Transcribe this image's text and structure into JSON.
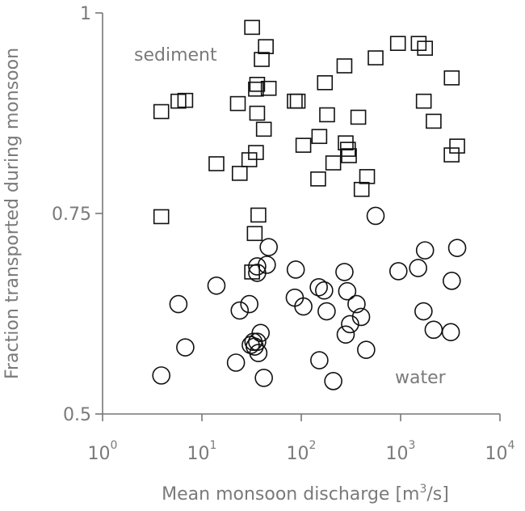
{
  "chart_data": {
    "type": "scatter",
    "title": "",
    "xlabel": "Mean monsoon discharge [m",
    "xlabel_sup": "3",
    "xlabel_tail": "/s]",
    "ylabel": "Fraction transported during monsoon",
    "xscale": "log",
    "xlim": [
      1,
      10000
    ],
    "ylim": [
      0.5,
      1.0
    ],
    "x_ticks": [
      {
        "base": "10",
        "exp": "0",
        "value": 1
      },
      {
        "base": "10",
        "exp": "1",
        "value": 10
      },
      {
        "base": "10",
        "exp": "2",
        "value": 100
      },
      {
        "base": "10",
        "exp": "3",
        "value": 1000
      },
      {
        "base": "10",
        "exp": "4",
        "value": 10000
      }
    ],
    "y_ticks": [
      {
        "label": "0.5",
        "value": 0.5
      },
      {
        "label": "0.75",
        "value": 0.75
      },
      {
        "label": "1",
        "value": 1.0
      }
    ],
    "annotations": {
      "sediment": "sediment",
      "water": "water"
    },
    "series": [
      {
        "name": "sediment",
        "marker": "square",
        "points": [
          [
            3.9,
            0.877
          ],
          [
            5.8,
            0.89
          ],
          [
            6.8,
            0.891
          ],
          [
            3.9,
            0.746
          ],
          [
            14,
            0.812
          ],
          [
            23,
            0.887
          ],
          [
            24,
            0.8
          ],
          [
            30,
            0.817
          ],
          [
            32,
            0.982
          ],
          [
            35,
            0.905
          ],
          [
            36,
            0.911
          ],
          [
            36,
            0.875
          ],
          [
            35,
            0.826
          ],
          [
            37,
            0.748
          ],
          [
            40,
            0.942
          ],
          [
            42,
            0.855
          ],
          [
            44,
            0.958
          ],
          [
            47,
            0.906
          ],
          [
            86,
            0.89
          ],
          [
            92,
            0.89
          ],
          [
            105,
            0.835
          ],
          [
            152,
            0.846
          ],
          [
            148,
            0.793
          ],
          [
            173,
            0.913
          ],
          [
            182,
            0.873
          ],
          [
            210,
            0.813
          ],
          [
            272,
            0.934
          ],
          [
            280,
            0.838
          ],
          [
            295,
            0.83
          ],
          [
            302,
            0.822
          ],
          [
            375,
            0.87
          ],
          [
            405,
            0.78
          ],
          [
            460,
            0.796
          ],
          [
            560,
            0.944
          ],
          [
            940,
            0.962
          ],
          [
            1520,
            0.962
          ],
          [
            1760,
            0.956
          ],
          [
            1710,
            0.89
          ],
          [
            2150,
            0.865
          ],
          [
            3270,
            0.919
          ],
          [
            3260,
            0.823
          ],
          [
            3710,
            0.834
          ],
          [
            34,
            0.725
          ],
          [
            32,
            0.677
          ]
        ]
      },
      {
        "name": "water",
        "marker": "circle",
        "points": [
          [
            3.9,
            0.548
          ],
          [
            5.8,
            0.637
          ],
          [
            6.8,
            0.583
          ],
          [
            14,
            0.66
          ],
          [
            22,
            0.564
          ],
          [
            24,
            0.629
          ],
          [
            30,
            0.637
          ],
          [
            31,
            0.586
          ],
          [
            33,
            0.59
          ],
          [
            34,
            0.584
          ],
          [
            36,
            0.684
          ],
          [
            36,
            0.676
          ],
          [
            36,
            0.59
          ],
          [
            37,
            0.576
          ],
          [
            39,
            0.601
          ],
          [
            42,
            0.545
          ],
          [
            45,
            0.686
          ],
          [
            47,
            0.708
          ],
          [
            86,
            0.645
          ],
          [
            88,
            0.68
          ],
          [
            105,
            0.634
          ],
          [
            150,
            0.658
          ],
          [
            152,
            0.567
          ],
          [
            170,
            0.654
          ],
          [
            180,
            0.628
          ],
          [
            210,
            0.541
          ],
          [
            272,
            0.677
          ],
          [
            280,
            0.599
          ],
          [
            290,
            0.653
          ],
          [
            310,
            0.612
          ],
          [
            360,
            0.637
          ],
          [
            400,
            0.621
          ],
          [
            450,
            0.58
          ],
          [
            560,
            0.747
          ],
          [
            950,
            0.678
          ],
          [
            1500,
            0.682
          ],
          [
            1760,
            0.704
          ],
          [
            1700,
            0.628
          ],
          [
            2150,
            0.605
          ],
          [
            3270,
            0.666
          ],
          [
            3200,
            0.602
          ],
          [
            3710,
            0.707
          ]
        ]
      }
    ]
  }
}
